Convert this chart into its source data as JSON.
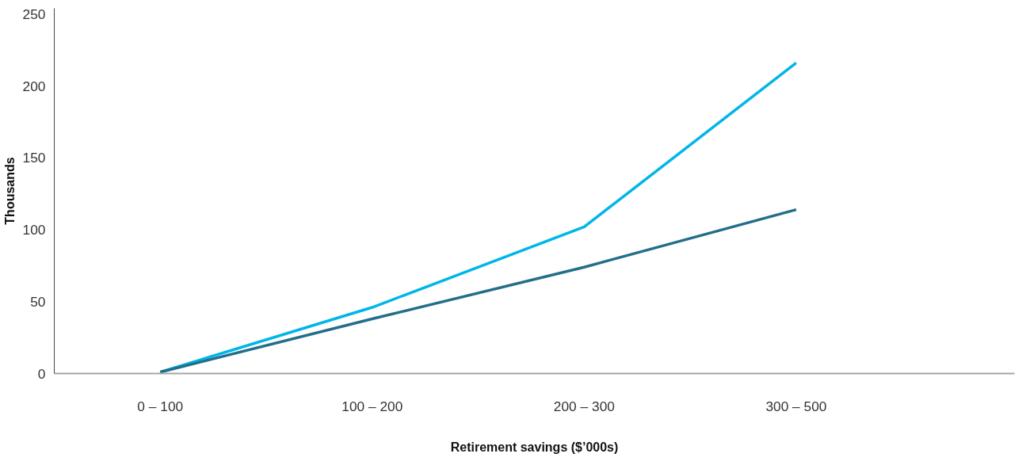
{
  "chart_data": {
    "type": "line",
    "xlabel": "Retirement savings ($’000s)",
    "ylabel": "Thousands",
    "categories": [
      "0 – 100",
      "100 – 200",
      "200 – 300",
      "300 – 500"
    ],
    "series": [
      {
        "color": "#00b6e8",
        "values": [
          1,
          46,
          102,
          216
        ]
      },
      {
        "color": "#236e8a",
        "values": [
          1,
          38,
          74,
          114
        ]
      }
    ],
    "ylim": [
      0,
      254
    ],
    "yticks": [
      0,
      50,
      100,
      150,
      200,
      250
    ],
    "marker": "none",
    "line_style": "solid"
  }
}
